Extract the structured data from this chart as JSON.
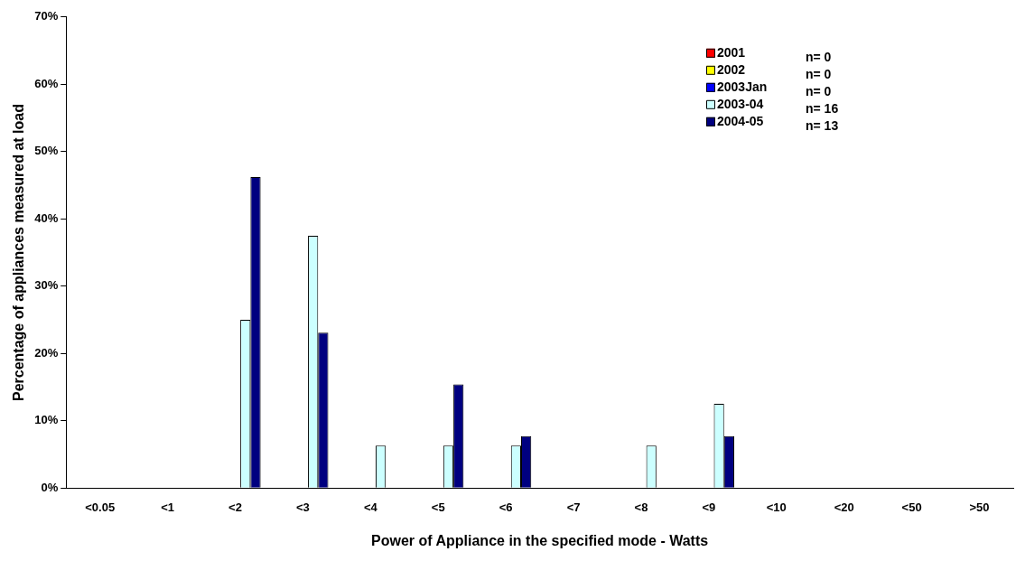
{
  "chart_data": {
    "type": "bar",
    "xlabel": "Power of Appliance in the specified mode - Watts",
    "ylabel": "Percentage of appliances measured at load",
    "categories": [
      "<0.05",
      "<1",
      "<2",
      "<3",
      "<4",
      "<5",
      "<6",
      "<7",
      "<8",
      "<9",
      "<10",
      "<20",
      "<50",
      ">50"
    ],
    "series": [
      {
        "name": "2001",
        "color": "#ff0000",
        "values": [
          0,
          0,
          0,
          0,
          0,
          0,
          0,
          0,
          0,
          0,
          0,
          0,
          0,
          0
        ]
      },
      {
        "name": "2002",
        "color": "#ffff00",
        "values": [
          0,
          0,
          0,
          0,
          0,
          0,
          0,
          0,
          0,
          0,
          0,
          0,
          0,
          0
        ]
      },
      {
        "name": "2003Jan",
        "color": "#0000ff",
        "values": [
          0,
          0,
          0,
          0,
          0,
          0,
          0,
          0,
          0,
          0,
          0,
          0,
          0,
          0
        ]
      },
      {
        "name": "2003-04",
        "color": "#ccffff",
        "values": [
          0,
          0,
          25,
          37.5,
          6.3,
          6.3,
          6.3,
          0,
          6.3,
          12.5,
          0,
          0,
          0,
          0
        ]
      },
      {
        "name": "2004-05",
        "color": "#000080",
        "values": [
          0,
          0,
          46.2,
          23.1,
          0,
          15.4,
          7.7,
          0,
          0,
          7.7,
          0,
          0,
          0,
          0
        ]
      }
    ],
    "annotations": [
      "n= 0",
      "n= 0",
      "n= 0",
      "n= 16",
      "n= 13"
    ],
    "ylim": [
      0,
      70
    ],
    "yticks": [
      {
        "value": 0,
        "label": "0%"
      },
      {
        "value": 10,
        "label": "10%"
      },
      {
        "value": 20,
        "label": "20%"
      },
      {
        "value": 30,
        "label": "30%"
      },
      {
        "value": 40,
        "label": "40%"
      },
      {
        "value": 50,
        "label": "50%"
      },
      {
        "value": 60,
        "label": "60%"
      },
      {
        "value": 70,
        "label": "70%"
      }
    ],
    "grid": false,
    "legend": "top right"
  }
}
